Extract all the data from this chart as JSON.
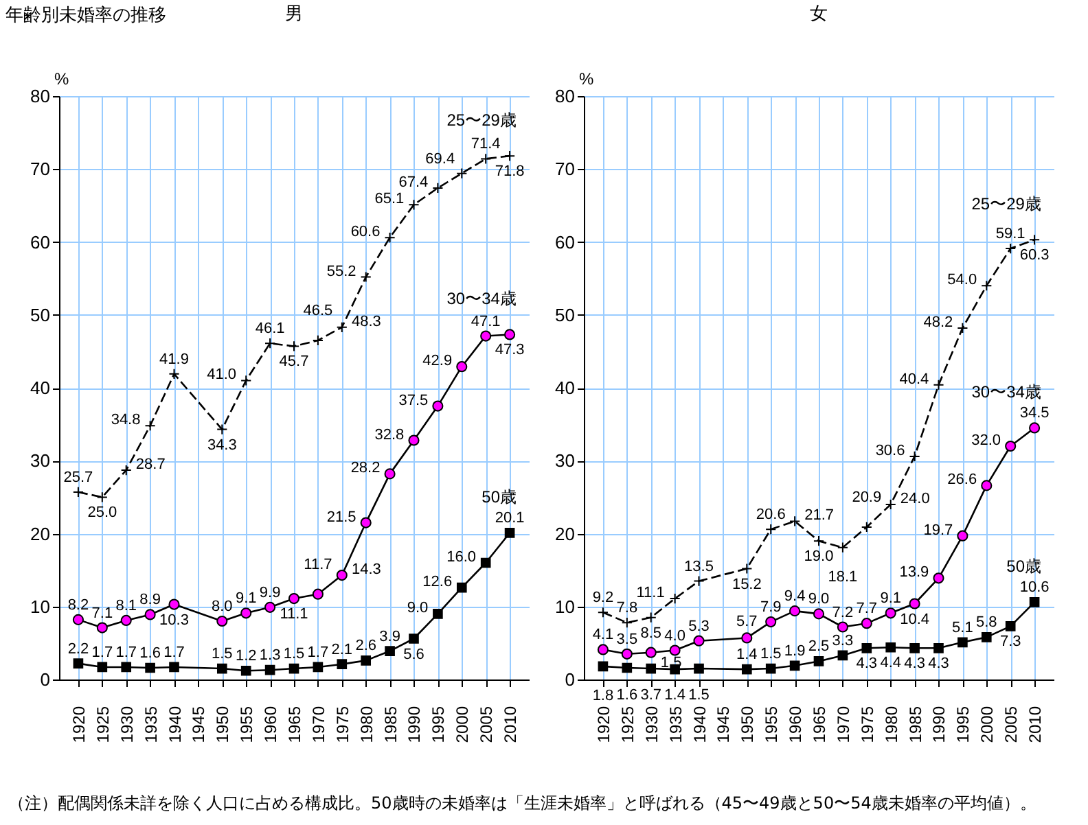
{
  "chart_data": [
    {
      "type": "line",
      "title": "年齢別未婚率の推移",
      "subtitle": "男",
      "ylabel": "%",
      "x": [
        1920,
        1925,
        1930,
        1935,
        1940,
        1950,
        1955,
        1960,
        1965,
        1970,
        1975,
        1980,
        1985,
        1990,
        1995,
        2000,
        2005,
        2010
      ],
      "xlim": [
        1916,
        2014
      ],
      "xticks": [
        1920,
        1925,
        1930,
        1935,
        1940,
        1945,
        1950,
        1955,
        1960,
        1965,
        1970,
        1975,
        1980,
        1985,
        1990,
        1995,
        2000,
        2005,
        2010
      ],
      "ylim": [
        0,
        80
      ],
      "yticks": [
        0,
        10,
        20,
        30,
        40,
        50,
        60,
        70,
        80
      ],
      "grid": true,
      "annotations": [
        "（注）配偶関係未詳を除く人口に占める構成比。50歳時の未婚率は「生涯未婚率」と呼ばれる（45〜49歳と50〜54歳未婚率の平均値）。"
      ],
      "series": [
        {
          "name": "25〜29歳",
          "color": "#000000",
          "marker": "cross",
          "line_style": "dashed",
          "values": [
            25.7,
            25.0,
            28.7,
            34.8,
            41.9,
            34.3,
            41.0,
            46.1,
            45.7,
            46.5,
            48.3,
            55.2,
            60.6,
            65.1,
            67.4,
            69.4,
            71.4,
            71.8
          ],
          "value_labels": [
            "25.7",
            "25.0",
            "28.7",
            "34.8",
            "41.9",
            "34.3",
            "41.0",
            "46.1",
            "45.7",
            "46.5",
            "48.3",
            "55.2",
            "60.6",
            "65.1",
            "67.4",
            "69.4",
            "71.4",
            "71.8"
          ]
        },
        {
          "name": "30〜34歳",
          "color": "#ff00ff",
          "marker": "circle",
          "line_style": "solid",
          "values": [
            8.2,
            7.1,
            8.1,
            8.9,
            10.3,
            8.0,
            9.1,
            9.9,
            11.1,
            11.7,
            14.3,
            21.5,
            28.2,
            32.8,
            37.5,
            42.9,
            47.1,
            47.3
          ],
          "value_labels": [
            "8.2",
            "7.1",
            "8.1",
            "8.9",
            "10.3",
            "8.0",
            "9.1",
            "9.9",
            "11.1",
            "11.7",
            "14.3",
            "21.5",
            "28.2",
            "32.8",
            "37.5",
            "42.9",
            "47.1",
            "47.3"
          ]
        },
        {
          "name": "50歳",
          "color": "#000000",
          "marker": "square",
          "line_style": "solid",
          "values": [
            2.2,
            1.7,
            1.7,
            1.6,
            1.7,
            1.5,
            1.2,
            1.3,
            1.5,
            1.7,
            2.1,
            2.6,
            3.9,
            5.6,
            9.0,
            12.6,
            16.0,
            20.1
          ],
          "value_labels": [
            "2.2",
            "1.7",
            "1.7",
            "1.6",
            "1.7",
            "1.5",
            "1.2",
            "1.3",
            "1.5",
            "1.7",
            "2.1",
            "2.6",
            "3.9",
            "5.6",
            "9.0",
            "12.6",
            "16.0",
            "20.1"
          ]
        }
      ]
    },
    {
      "type": "line",
      "subtitle": "女",
      "ylabel": "%",
      "x": [
        1920,
        1925,
        1930,
        1935,
        1940,
        1950,
        1955,
        1960,
        1965,
        1970,
        1975,
        1980,
        1985,
        1990,
        1995,
        2000,
        2005,
        2010
      ],
      "xlim": [
        1916,
        2014
      ],
      "xticks": [
        1920,
        1925,
        1930,
        1935,
        1940,
        1945,
        1950,
        1955,
        1960,
        1965,
        1970,
        1975,
        1980,
        1985,
        1990,
        1995,
        2000,
        2005,
        2010
      ],
      "ylim": [
        0,
        80
      ],
      "yticks": [
        0,
        10,
        20,
        30,
        40,
        50,
        60,
        70,
        80
      ],
      "grid": true,
      "series": [
        {
          "name": "25〜29歳",
          "color": "#000000",
          "marker": "cross",
          "line_style": "dashed",
          "values": [
            9.2,
            7.8,
            8.5,
            11.1,
            13.5,
            15.2,
            20.6,
            21.7,
            19.0,
            18.1,
            20.9,
            24.0,
            30.6,
            40.4,
            48.2,
            54.0,
            59.1,
            60.3
          ],
          "value_labels": [
            "9.2",
            "7.8",
            "8.5",
            "11.1",
            "13.5",
            "15.2",
            "20.6",
            "21.7",
            "19.0",
            "18.1",
            "20.9",
            "24.0",
            "30.6",
            "40.4",
            "48.2",
            "54.0",
            "59.1",
            "60.3"
          ]
        },
        {
          "name": "30〜34歳",
          "color": "#ff00ff",
          "marker": "circle",
          "line_style": "solid",
          "values": [
            4.1,
            3.5,
            3.7,
            4.0,
            5.3,
            5.7,
            7.9,
            9.4,
            9.0,
            7.2,
            7.7,
            9.1,
            10.4,
            13.9,
            19.7,
            26.6,
            32.0,
            34.5
          ],
          "value_labels": [
            "4.1",
            "3.5",
            "3.7",
            "4.0",
            "5.3",
            "5.7",
            "7.9",
            "9.4",
            "9.0",
            "7.2",
            "7.7",
            "9.1",
            "10.4",
            "13.9",
            "19.7",
            "26.6",
            "32.0",
            "34.5"
          ]
        },
        {
          "name": "50歳",
          "color": "#000000",
          "marker": "square",
          "line_style": "solid",
          "values": [
            1.8,
            1.6,
            1.5,
            1.4,
            1.5,
            1.4,
            1.5,
            1.9,
            2.5,
            3.3,
            4.3,
            4.4,
            4.3,
            4.3,
            5.1,
            5.8,
            7.3,
            10.6
          ],
          "value_labels": [
            "1.8",
            "1.6",
            "1.5",
            "1.4",
            "1.5",
            "1.4",
            "1.5",
            "1.9",
            "2.5",
            "3.3",
            "4.3",
            "4.4",
            "4.3",
            "4.3",
            "5.1",
            "5.8",
            "7.3",
            "10.6"
          ]
        }
      ]
    }
  ]
}
